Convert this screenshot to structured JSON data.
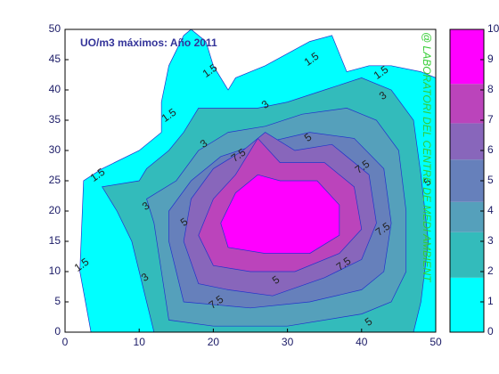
{
  "chart_data": {
    "type": "contour",
    "title": "UO/m3 máximos: Año 2011",
    "watermark": "@ LABORATORI DEL CENTRE DE MEDI AMBIENT",
    "xlim": [
      0,
      50
    ],
    "xticks": [
      0,
      10,
      20,
      30,
      40,
      50
    ],
    "ylim": [
      0,
      50
    ],
    "yticks": [
      0,
      5,
      10,
      15,
      20,
      25,
      30,
      35,
      40,
      45,
      50
    ],
    "clim": [
      0,
      10
    ],
    "cticks": [
      0,
      1,
      2,
      3,
      4,
      5,
      6,
      7,
      8,
      9,
      10
    ],
    "contours": [
      {
        "level": 0,
        "color": "#00ffff",
        "points": [
          [
            3.5,
            0
          ],
          [
            2,
            10
          ],
          [
            2.5,
            25
          ],
          [
            5,
            27
          ],
          [
            10,
            30
          ],
          [
            13,
            33
          ],
          [
            13,
            38
          ],
          [
            14,
            44
          ],
          [
            16,
            49
          ],
          [
            17,
            50
          ],
          [
            19,
            48
          ],
          [
            20,
            44
          ],
          [
            22,
            40
          ],
          [
            23,
            42
          ],
          [
            27,
            44
          ],
          [
            30,
            46
          ],
          [
            33,
            48
          ],
          [
            36,
            49
          ],
          [
            37,
            46
          ],
          [
            38,
            43
          ],
          [
            41,
            44
          ],
          [
            44,
            44
          ],
          [
            48,
            43
          ],
          [
            50,
            42
          ],
          [
            50,
            0
          ]
        ]
      },
      {
        "level": 1.8,
        "color": "#33bbbb",
        "points": [
          [
            12,
            0
          ],
          [
            9,
            15
          ],
          [
            7,
            20
          ],
          [
            5,
            24
          ],
          [
            10,
            25
          ],
          [
            11,
            27
          ],
          [
            14,
            30
          ],
          [
            16,
            33
          ],
          [
            18,
            37
          ],
          [
            21,
            37
          ],
          [
            26,
            37
          ],
          [
            30,
            38
          ],
          [
            35,
            40
          ],
          [
            40,
            42
          ],
          [
            44,
            40
          ],
          [
            47,
            35
          ],
          [
            48,
            26
          ],
          [
            49,
            15
          ],
          [
            48,
            5
          ],
          [
            47,
            0
          ]
        ]
      },
      {
        "level": 3.3,
        "color": "#55a0bb",
        "points": [
          [
            14,
            2
          ],
          [
            13,
            10
          ],
          [
            12,
            18
          ],
          [
            11,
            22
          ],
          [
            15,
            25
          ],
          [
            18,
            30
          ],
          [
            22,
            33
          ],
          [
            27,
            34
          ],
          [
            32,
            36
          ],
          [
            38,
            37
          ],
          [
            42,
            35
          ],
          [
            45,
            30
          ],
          [
            46,
            20
          ],
          [
            46,
            10
          ],
          [
            44,
            5
          ],
          [
            40,
            3
          ],
          [
            30,
            1
          ],
          [
            20,
            1
          ]
        ]
      },
      {
        "level": 4.3,
        "color": "#6680bb",
        "points": [
          [
            16,
            5
          ],
          [
            14,
            15
          ],
          [
            14,
            20
          ],
          [
            17,
            25
          ],
          [
            21,
            29
          ],
          [
            26,
            31
          ],
          [
            33,
            33
          ],
          [
            39,
            32
          ],
          [
            43,
            27
          ],
          [
            44,
            18
          ],
          [
            43,
            10
          ],
          [
            40,
            7
          ],
          [
            33,
            5
          ],
          [
            25,
            4
          ]
        ]
      },
      {
        "level": 5.7,
        "color": "#8866bb",
        "points": [
          [
            18,
            8
          ],
          [
            16,
            15
          ],
          [
            17,
            22
          ],
          [
            20,
            27
          ],
          [
            24,
            30
          ],
          [
            27,
            33
          ],
          [
            31,
            30
          ],
          [
            36,
            31
          ],
          [
            41,
            26
          ],
          [
            42,
            18
          ],
          [
            40,
            12
          ],
          [
            35,
            9
          ],
          [
            28,
            6
          ],
          [
            22,
            7
          ]
        ]
      },
      {
        "level": 6.9,
        "color": "#bb44bb",
        "points": [
          [
            20,
            11
          ],
          [
            18,
            16
          ],
          [
            20,
            22
          ],
          [
            23,
            26
          ],
          [
            26,
            32
          ],
          [
            29,
            28
          ],
          [
            35,
            28
          ],
          [
            39,
            24
          ],
          [
            40,
            17
          ],
          [
            37,
            13
          ],
          [
            31,
            10
          ],
          [
            25,
            10
          ]
        ]
      },
      {
        "level": 8.2,
        "color": "#ff00ff",
        "points": [
          [
            22,
            14
          ],
          [
            21,
            18
          ],
          [
            23,
            23
          ],
          [
            26,
            26
          ],
          [
            29,
            25
          ],
          [
            34,
            25
          ],
          [
            37,
            21
          ],
          [
            37,
            16
          ],
          [
            33,
            13
          ],
          [
            27,
            13
          ]
        ]
      }
    ],
    "contour_labels": [
      1.5,
      1.5,
      1.5,
      1.5,
      1.5,
      1.5,
      3,
      3,
      3,
      3,
      3,
      5,
      5,
      5,
      5,
      5,
      7.5,
      7.5,
      7.5,
      7.5,
      7.5
    ]
  }
}
